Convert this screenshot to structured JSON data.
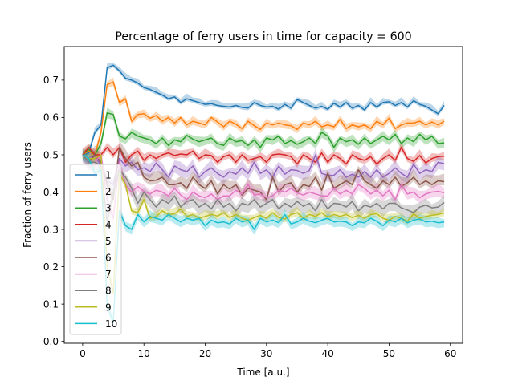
{
  "chart_data": {
    "type": "line",
    "title": "Percentage of ferry users in time for capacity = 600",
    "xlabel": "Time [a.u.]",
    "ylabel": "Fraction of ferry users",
    "xlim": [
      -3,
      62
    ],
    "ylim": [
      -0.005,
      0.79
    ],
    "xticks": [
      "0",
      "10",
      "20",
      "30",
      "40",
      "50",
      "60"
    ],
    "yticks": [
      "0.0",
      "0.1",
      "0.2",
      "0.3",
      "0.4",
      "0.5",
      "0.6",
      "0.7"
    ],
    "grid": false,
    "legend_position": "lower-left",
    "band": "shaded confidence band around each series",
    "series": [
      {
        "name": "1",
        "color": "#1f77b4",
        "x0": 0,
        "band": 0.01,
        "values": [
          0.5,
          0.505,
          0.56,
          0.58,
          0.733,
          0.74,
          0.725,
          0.705,
          0.7,
          0.692,
          0.68,
          0.675,
          0.667,
          0.66,
          0.65,
          0.655,
          0.64,
          0.65,
          0.645,
          0.64,
          0.635,
          0.637,
          0.632,
          0.63,
          0.628,
          0.632,
          0.627,
          0.625,
          0.64,
          0.632,
          0.628,
          0.63,
          0.622,
          0.635,
          0.625,
          0.648,
          0.64,
          0.632,
          0.625,
          0.63,
          0.622,
          0.638,
          0.628,
          0.64,
          0.625,
          0.632,
          0.62,
          0.64,
          0.628,
          0.64,
          0.642,
          0.632,
          0.64,
          0.628,
          0.645,
          0.635,
          0.63,
          0.62,
          0.61,
          0.632
        ]
      },
      {
        "name": "2",
        "color": "#ff7f0e",
        "x0": 0,
        "band": 0.01,
        "values": [
          0.5,
          0.51,
          0.5,
          0.56,
          0.688,
          0.695,
          0.64,
          0.65,
          0.59,
          0.608,
          0.61,
          0.598,
          0.605,
          0.59,
          0.6,
          0.585,
          0.6,
          0.58,
          0.59,
          0.585,
          0.58,
          0.6,
          0.588,
          0.575,
          0.59,
          0.582,
          0.57,
          0.59,
          0.578,
          0.568,
          0.585,
          0.58,
          0.585,
          0.58,
          0.578,
          0.568,
          0.585,
          0.58,
          0.59,
          0.575,
          0.58,
          0.575,
          0.595,
          0.57,
          0.58,
          0.575,
          0.58,
          0.57,
          0.59,
          0.58,
          0.598,
          0.57,
          0.58,
          0.585,
          0.585,
          0.59,
          0.58,
          0.588,
          0.58,
          0.59
        ]
      },
      {
        "name": "3",
        "color": "#2ca02c",
        "x0": 0,
        "band": 0.01,
        "values": [
          0.5,
          0.515,
          0.5,
          0.53,
          0.612,
          0.608,
          0.55,
          0.543,
          0.56,
          0.55,
          0.545,
          0.54,
          0.53,
          0.545,
          0.525,
          0.54,
          0.535,
          0.552,
          0.542,
          0.535,
          0.54,
          0.545,
          0.53,
          0.525,
          0.545,
          0.535,
          0.538,
          0.525,
          0.54,
          0.52,
          0.545,
          0.54,
          0.55,
          0.53,
          0.538,
          0.528,
          0.535,
          0.545,
          0.53,
          0.56,
          0.55,
          0.52,
          0.545,
          0.535,
          0.54,
          0.528,
          0.545,
          0.53,
          0.54,
          0.55,
          0.54,
          0.555,
          0.53,
          0.545,
          0.535,
          0.555,
          0.54,
          0.55,
          0.53,
          0.532
        ]
      },
      {
        "name": "4",
        "color": "#d62728",
        "x0": 0,
        "band": 0.012,
        "values": [
          0.5,
          0.52,
          0.5,
          0.5,
          0.52,
          0.5,
          0.52,
          0.48,
          0.5,
          0.51,
          0.485,
          0.5,
          0.49,
          0.5,
          0.505,
          0.498,
          0.502,
          0.5,
          0.51,
          0.49,
          0.5,
          0.498,
          0.48,
          0.495,
          0.5,
          0.48,
          0.5,
          0.485,
          0.49,
          0.495,
          0.48,
          0.5,
          0.502,
          0.5,
          0.495,
          0.475,
          0.5,
          0.49,
          0.48,
          0.505,
          0.48,
          0.5,
          0.49,
          0.475,
          0.5,
          0.49,
          0.485,
          0.495,
          0.475,
          0.49,
          0.5,
          0.485,
          0.52,
          0.49,
          0.482,
          0.498,
          0.478,
          0.49,
          0.495,
          0.496
        ]
      },
      {
        "name": "5",
        "color": "#9467bd",
        "x0": 0,
        "band": 0.015,
        "values": [
          0.5,
          0.49,
          0.5,
          0.47,
          0.43,
          0.42,
          0.49,
          0.47,
          0.48,
          0.46,
          0.465,
          0.455,
          0.478,
          0.46,
          0.44,
          0.47,
          0.46,
          0.455,
          0.47,
          0.44,
          0.455,
          0.465,
          0.45,
          0.44,
          0.455,
          0.448,
          0.465,
          0.45,
          0.48,
          0.45,
          0.46,
          0.44,
          0.47,
          0.448,
          0.46,
          0.458,
          0.45,
          0.458,
          0.5,
          0.45,
          0.445,
          0.445,
          0.46,
          0.44,
          0.448,
          0.44,
          0.455,
          0.44,
          0.46,
          0.44,
          0.45,
          0.465,
          0.45,
          0.44,
          0.475,
          0.45,
          0.46,
          0.455,
          0.48,
          0.476
        ]
      },
      {
        "name": "6",
        "color": "#8c564b",
        "x0": 0,
        "band": 0.018,
        "values": [
          0.5,
          0.48,
          0.5,
          0.48,
          0.42,
          0.38,
          0.52,
          0.49,
          0.47,
          0.48,
          0.44,
          0.43,
          0.432,
          0.44,
          0.42,
          0.42,
          0.425,
          0.41,
          0.44,
          0.42,
          0.41,
          0.43,
          0.395,
          0.42,
          0.408,
          0.42,
          0.392,
          0.41,
          0.405,
          0.4,
          0.38,
          0.44,
          0.4,
          0.42,
          0.425,
          0.4,
          0.42,
          0.415,
          0.44,
          0.405,
          0.45,
          0.41,
          0.42,
          0.43,
          0.42,
          0.46,
          0.43,
          0.42,
          0.41,
          0.43,
          0.42,
          0.44,
          0.415,
          0.425,
          0.44,
          0.42,
          0.43,
          0.42,
          0.43,
          0.428
        ]
      },
      {
        "name": "7",
        "color": "#e377c2",
        "x0": 0,
        "band": 0.015,
        "values": [
          0.5,
          0.48,
          0.48,
          0.5,
          0.38,
          0.33,
          0.48,
          0.42,
          0.4,
          0.415,
          0.402,
          0.395,
          0.405,
          0.4,
          0.39,
          0.41,
          0.392,
          0.38,
          0.4,
          0.39,
          0.385,
          0.395,
          0.38,
          0.39,
          0.39,
          0.405,
          0.395,
          0.42,
          0.392,
          0.395,
          0.385,
          0.39,
          0.405,
          0.4,
          0.41,
          0.398,
          0.392,
          0.4,
          0.395,
          0.39,
          0.39,
          0.41,
          0.395,
          0.405,
          0.395,
          0.42,
          0.41,
          0.395,
          0.405,
          0.39,
          0.405,
          0.38,
          0.42,
          0.395,
          0.4,
          0.385,
          0.395,
          0.4,
          0.402,
          0.398
        ]
      },
      {
        "name": "8",
        "color": "#7f7f7f",
        "x0": 0,
        "band": 0.015,
        "values": [
          0.5,
          0.48,
          0.48,
          0.47,
          0.32,
          0.4,
          0.46,
          0.44,
          0.41,
          0.37,
          0.4,
          0.38,
          0.36,
          0.38,
          0.37,
          0.39,
          0.36,
          0.375,
          0.38,
          0.36,
          0.37,
          0.355,
          0.38,
          0.36,
          0.37,
          0.35,
          0.37,
          0.365,
          0.38,
          0.36,
          0.37,
          0.38,
          0.355,
          0.37,
          0.36,
          0.375,
          0.362,
          0.37,
          0.35,
          0.38,
          0.355,
          0.37,
          0.368,
          0.36,
          0.375,
          0.35,
          0.365,
          0.36,
          0.37,
          0.355,
          0.37,
          0.37,
          0.358,
          0.352,
          0.345,
          0.36,
          0.365,
          0.358,
          0.36,
          0.372
        ]
      },
      {
        "name": "9",
        "color": "#bcbd22",
        "x0": 0,
        "band": 0.012,
        "values": [
          0.5,
          0.49,
          0.49,
          0.5,
          0.2,
          0.13,
          0.45,
          0.42,
          0.35,
          0.345,
          0.38,
          0.33,
          0.335,
          0.35,
          0.34,
          0.342,
          0.355,
          0.335,
          0.34,
          0.33,
          0.335,
          0.34,
          0.336,
          0.345,
          0.332,
          0.34,
          0.33,
          0.325,
          0.332,
          0.338,
          0.33,
          0.345,
          0.332,
          0.328,
          0.34,
          0.345,
          0.33,
          0.34,
          0.335,
          0.345,
          0.333,
          0.34,
          0.335,
          0.34,
          0.332,
          0.338,
          0.33,
          0.34,
          0.342,
          0.33,
          0.325,
          0.335,
          0.33,
          0.322,
          0.342,
          0.33,
          0.335,
          0.338,
          0.34,
          0.345
        ]
      },
      {
        "name": "10",
        "color": "#17becf",
        "x0": 0,
        "band": 0.012,
        "values": [
          0.5,
          0.49,
          0.45,
          0.46,
          0.1,
          0.05,
          0.35,
          0.31,
          0.3,
          0.34,
          0.32,
          0.335,
          0.33,
          0.325,
          0.34,
          0.33,
          0.32,
          0.33,
          0.325,
          0.33,
          0.31,
          0.325,
          0.318,
          0.32,
          0.315,
          0.33,
          0.32,
          0.325,
          0.3,
          0.33,
          0.32,
          0.325,
          0.318,
          0.34,
          0.315,
          0.32,
          0.33,
          0.322,
          0.318,
          0.325,
          0.33,
          0.32,
          0.322,
          0.32,
          0.31,
          0.32,
          0.318,
          0.33,
          0.322,
          0.31,
          0.325,
          0.32,
          0.33,
          0.318,
          0.325,
          0.328,
          0.32,
          0.322,
          0.318,
          0.32
        ]
      }
    ]
  }
}
